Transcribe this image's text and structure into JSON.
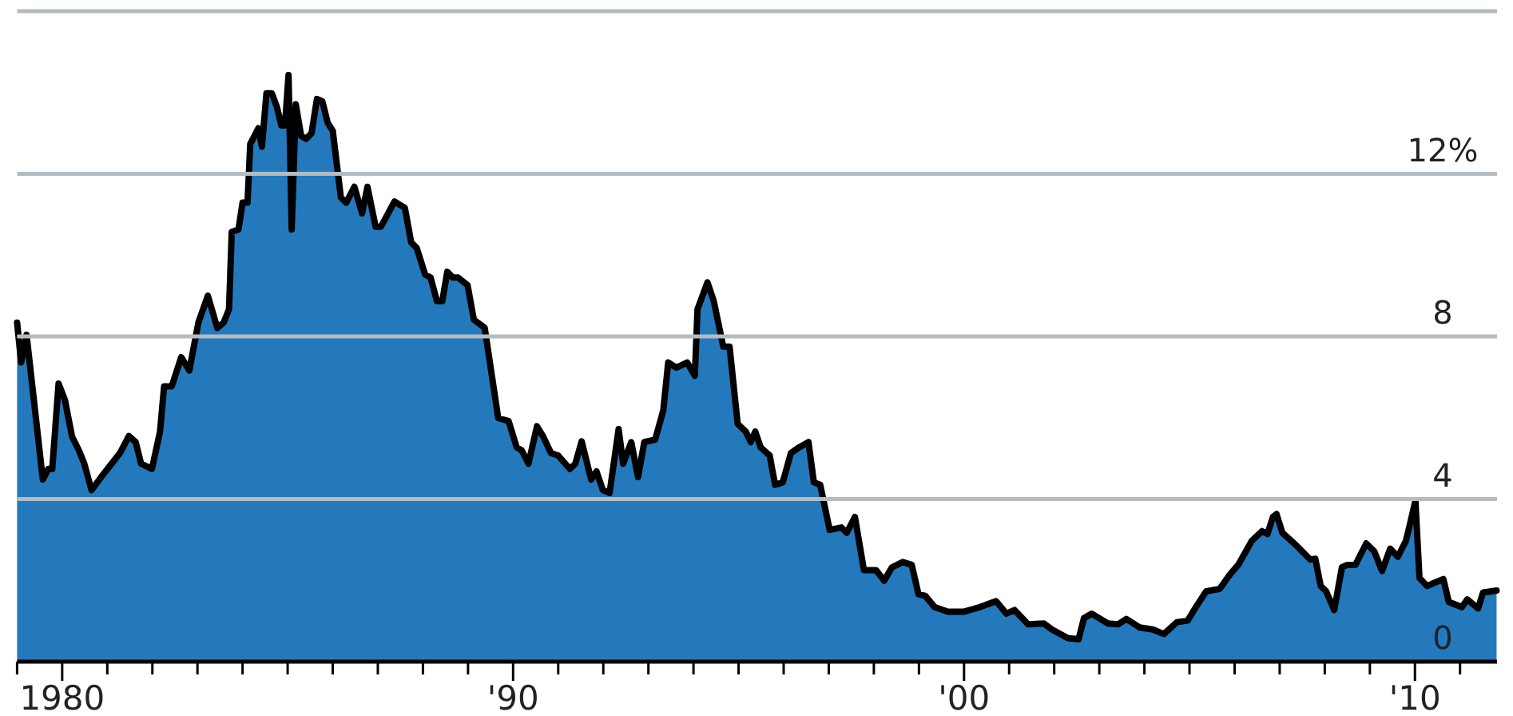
{
  "chart_data": {
    "type": "area",
    "xlim": [
      1979,
      2011.82
    ],
    "ylim": [
      0,
      16
    ],
    "xticks": [
      {
        "value": 1979,
        "label": null
      },
      {
        "value": 1980,
        "label": "1980"
      },
      {
        "value": 1981,
        "label": null
      },
      {
        "value": 1982,
        "label": null
      },
      {
        "value": 1983,
        "label": null
      },
      {
        "value": 1984,
        "label": null
      },
      {
        "value": 1985,
        "label": null
      },
      {
        "value": 1986,
        "label": null
      },
      {
        "value": 1987,
        "label": null
      },
      {
        "value": 1988,
        "label": null
      },
      {
        "value": 1989,
        "label": null
      },
      {
        "value": 1990,
        "label": "'90"
      },
      {
        "value": 1991,
        "label": null
      },
      {
        "value": 1992,
        "label": null
      },
      {
        "value": 1993,
        "label": null
      },
      {
        "value": 1994,
        "label": null
      },
      {
        "value": 1995,
        "label": null
      },
      {
        "value": 1996,
        "label": null
      },
      {
        "value": 1997,
        "label": null
      },
      {
        "value": 1998,
        "label": null
      },
      {
        "value": 1999,
        "label": null
      },
      {
        "value": 2000,
        "label": "'00"
      },
      {
        "value": 2001,
        "label": null
      },
      {
        "value": 2002,
        "label": null
      },
      {
        "value": 2003,
        "label": null
      },
      {
        "value": 2004,
        "label": null
      },
      {
        "value": 2005,
        "label": null
      },
      {
        "value": 2006,
        "label": null
      },
      {
        "value": 2007,
        "label": null
      },
      {
        "value": 2008,
        "label": null
      },
      {
        "value": 2009,
        "label": null
      },
      {
        "value": 2010,
        "label": "'10"
      },
      {
        "value": 2011,
        "label": null
      }
    ],
    "yticks": [
      0,
      4,
      8,
      {
        "value": 12,
        "label": "12%"
      },
      {
        "value": 16,
        "label": null
      }
    ],
    "grid": "y",
    "series": [
      {
        "color": "#2479bd",
        "x": [
          1979.0,
          1979.09,
          1979.21,
          1979.57,
          1979.69,
          1979.78,
          1979.92,
          1980.06,
          1980.22,
          1980.37,
          1980.49,
          1980.65,
          1980.87,
          1981.28,
          1981.48,
          1981.63,
          1981.75,
          1981.99,
          1982.17,
          1982.26,
          1982.43,
          1982.64,
          1982.82,
          1983.02,
          1983.23,
          1983.44,
          1983.58,
          1983.7,
          1983.76,
          1983.91,
          1984.0,
          1984.11,
          1984.17,
          1984.35,
          1984.43,
          1984.53,
          1984.65,
          1984.76,
          1984.86,
          1984.94,
          1985.02,
          1985.09,
          1985.18,
          1985.3,
          1985.41,
          1985.53,
          1985.65,
          1985.77,
          1985.89,
          1986.0,
          1986.18,
          1986.3,
          1986.48,
          1986.65,
          1986.77,
          1986.95,
          1987.07,
          1987.37,
          1987.6,
          1987.74,
          1987.86,
          1988.05,
          1988.17,
          1988.31,
          1988.43,
          1988.54,
          1988.66,
          1988.78,
          1988.99,
          1989.13,
          1989.37,
          1989.67,
          1989.9,
          1990.08,
          1990.19,
          1990.34,
          1990.53,
          1990.67,
          1990.84,
          1991.0,
          1991.26,
          1991.38,
          1991.52,
          1991.73,
          1991.85,
          1991.99,
          1992.14,
          1992.34,
          1992.44,
          1992.62,
          1992.77,
          1992.91,
          1993.15,
          1993.33,
          1993.44,
          1993.62,
          1993.86,
          1994.03,
          1994.09,
          1994.31,
          1994.45,
          1994.66,
          1994.8,
          1994.98,
          1995.16,
          1995.27,
          1995.37,
          1995.49,
          1995.69,
          1995.81,
          1995.98,
          1996.16,
          1996.34,
          1996.55,
          1996.67,
          1996.81,
          1997.02,
          1997.28,
          1997.4,
          1997.58,
          1997.78,
          1998.05,
          1998.23,
          1998.4,
          1998.64,
          1998.84,
          1998.99,
          1999.14,
          1999.35,
          1999.64,
          2000.0,
          2000.35,
          2000.71,
          2000.94,
          2001.12,
          2001.42,
          2001.77,
          2001.95,
          2002.3,
          2002.54,
          2002.66,
          2002.83,
          2003.19,
          2003.42,
          2003.6,
          2003.9,
          2004.19,
          2004.43,
          2004.72,
          2004.96,
          2005.14,
          2005.37,
          2005.67,
          2005.9,
          2006.08,
          2006.38,
          2006.61,
          2006.73,
          2006.85,
          2006.93,
          2007.06,
          2007.32,
          2007.44,
          2007.68,
          2007.79,
          2007.91,
          2008.03,
          2008.21,
          2008.38,
          2008.5,
          2008.68,
          2008.92,
          2009.1,
          2009.27,
          2009.45,
          2009.62,
          2009.8,
          2009.9,
          2010.01,
          2010.1,
          2010.27,
          2010.39,
          2010.63,
          2010.75,
          2011.04,
          2011.16,
          2011.4,
          2011.51,
          2011.81
        ],
        "values": [
          8.34,
          7.36,
          8.04,
          4.48,
          4.74,
          4.74,
          6.84,
          6.44,
          5.53,
          5.2,
          4.87,
          4.22,
          4.55,
          5.13,
          5.55,
          5.4,
          4.87,
          4.74,
          5.66,
          6.77,
          6.77,
          7.49,
          7.16,
          8.34,
          9.0,
          8.21,
          8.34,
          8.67,
          10.57,
          10.63,
          11.29,
          11.29,
          12.73,
          13.12,
          12.67,
          13.98,
          13.98,
          13.65,
          13.19,
          13.19,
          14.43,
          10.63,
          13.71,
          12.93,
          12.86,
          13.0,
          13.84,
          13.78,
          13.25,
          13.06,
          11.42,
          11.29,
          11.68,
          11.03,
          11.68,
          10.7,
          10.7,
          11.32,
          11.16,
          10.31,
          10.18,
          9.52,
          9.45,
          8.87,
          8.87,
          9.59,
          9.45,
          9.45,
          9.26,
          8.41,
          8.21,
          5.99,
          5.92,
          5.27,
          5.2,
          4.87,
          5.79,
          5.53,
          5.13,
          5.07,
          4.74,
          4.87,
          5.42,
          4.48,
          4.68,
          4.22,
          4.15,
          5.72,
          4.87,
          5.4,
          4.54,
          5.4,
          5.46,
          6.18,
          7.36,
          7.23,
          7.36,
          7.03,
          8.67,
          9.33,
          8.87,
          7.75,
          7.75,
          5.85,
          5.66,
          5.4,
          5.66,
          5.27,
          5.07,
          4.35,
          4.41,
          5.13,
          5.27,
          5.4,
          4.41,
          4.35,
          3.24,
          3.3,
          3.17,
          3.56,
          2.25,
          2.25,
          1.99,
          2.32,
          2.45,
          2.38,
          1.66,
          1.62,
          1.34,
          1.23,
          1.23,
          1.34,
          1.49,
          1.18,
          1.27,
          0.92,
          0.94,
          0.79,
          0.58,
          0.55,
          1.07,
          1.18,
          0.94,
          0.92,
          1.05,
          0.84,
          0.79,
          0.68,
          0.97,
          1.01,
          1.34,
          1.73,
          1.79,
          2.15,
          2.38,
          2.97,
          3.21,
          3.14,
          3.56,
          3.63,
          3.17,
          2.91,
          2.78,
          2.51,
          2.53,
          1.86,
          1.73,
          1.27,
          2.32,
          2.38,
          2.38,
          2.91,
          2.71,
          2.23,
          2.78,
          2.58,
          2.97,
          3.43,
          3.96,
          2.06,
          1.86,
          1.92,
          2.03,
          1.47,
          1.34,
          1.53,
          1.31,
          1.7,
          1.75
        ]
      }
    ]
  }
}
